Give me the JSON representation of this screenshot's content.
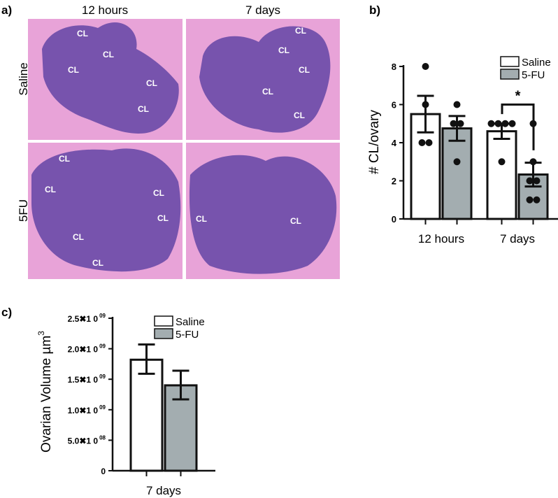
{
  "panel_a": {
    "label": "a)",
    "columns": [
      "12 hours",
      "7 days"
    ],
    "rows": [
      "Saline",
      "5FU"
    ],
    "images": [
      {
        "labels": [
          "CL",
          "CL",
          "CL",
          "CL",
          "CL"
        ]
      },
      {
        "labels": [
          "CL",
          "CL",
          "CL",
          "CL",
          "CL"
        ]
      },
      {
        "labels": [
          "CL",
          "CL",
          "CL",
          "CL",
          "CL",
          "CL"
        ]
      },
      {
        "labels": [
          "CL",
          "CL"
        ]
      }
    ],
    "colors": {
      "background": "#e8a3d8",
      "tissue": "#6a4aa8"
    }
  },
  "chart_data": [
    {
      "panel_label": "b)",
      "type": "bar",
      "title": "",
      "xlabel": "",
      "ylabel": "# CL/ovary",
      "categories": [
        "12 hours",
        "7 days"
      ],
      "ylim": [
        0,
        8
      ],
      "yticks": [
        "0",
        "2",
        "4",
        "6",
        "8"
      ],
      "legend": {
        "position": "top-right",
        "entries": [
          "Saline",
          "5-FU"
        ]
      },
      "series": [
        {
          "name": "Saline",
          "color": "#ffffff",
          "values": [
            5.5,
            4.6
          ],
          "err_high": [
            6.46,
            5.0
          ],
          "err_low": [
            4.54,
            4.2
          ],
          "points": [
            [
              8,
              6,
              4,
              4
            ],
            [
              5,
              5,
              5,
              5,
              3
            ]
          ]
        },
        {
          "name": "5-FU",
          "color": "#a3adb0",
          "values": [
            4.75,
            2.33
          ],
          "err_high": [
            5.4,
            2.95
          ],
          "err_low": [
            4.1,
            1.7
          ],
          "points": [
            [
              6,
              5,
              5,
              3
            ],
            [
              5,
              3,
              2,
              2,
              1,
              1
            ]
          ]
        }
      ],
      "annotation": "*"
    },
    {
      "panel_label": "c)",
      "type": "bar",
      "title": "",
      "xlabel": "",
      "ylabel": "Ovarian  Volume µm",
      "ylabel_sup": "3",
      "categories": [
        "7 days"
      ],
      "ylim": [
        0,
        2500000000
      ],
      "yticks": [
        {
          "mant": "0",
          "exp": ""
        },
        {
          "mant": "5.0✖1 0",
          "exp": "08"
        },
        {
          "mant": "1.0✖1 0",
          "exp": "09"
        },
        {
          "mant": "1.5✖1 0",
          "exp": "09"
        },
        {
          "mant": "2.0✖1 0",
          "exp": "09"
        },
        {
          "mant": "2.5✖1 0",
          "exp": "09"
        }
      ],
      "legend": {
        "position": "top-right",
        "entries": [
          "Saline",
          "5-FU"
        ]
      },
      "series": [
        {
          "name": "Saline",
          "color": "#ffffff",
          "values": [
            1820000000
          ],
          "err_high": [
            2070000000
          ],
          "err_low": [
            1590000000
          ]
        },
        {
          "name": "5-FU",
          "color": "#a3adb0",
          "values": [
            1400000000
          ],
          "err_high": [
            1640000000
          ],
          "err_low": [
            1170000000
          ]
        }
      ]
    }
  ]
}
